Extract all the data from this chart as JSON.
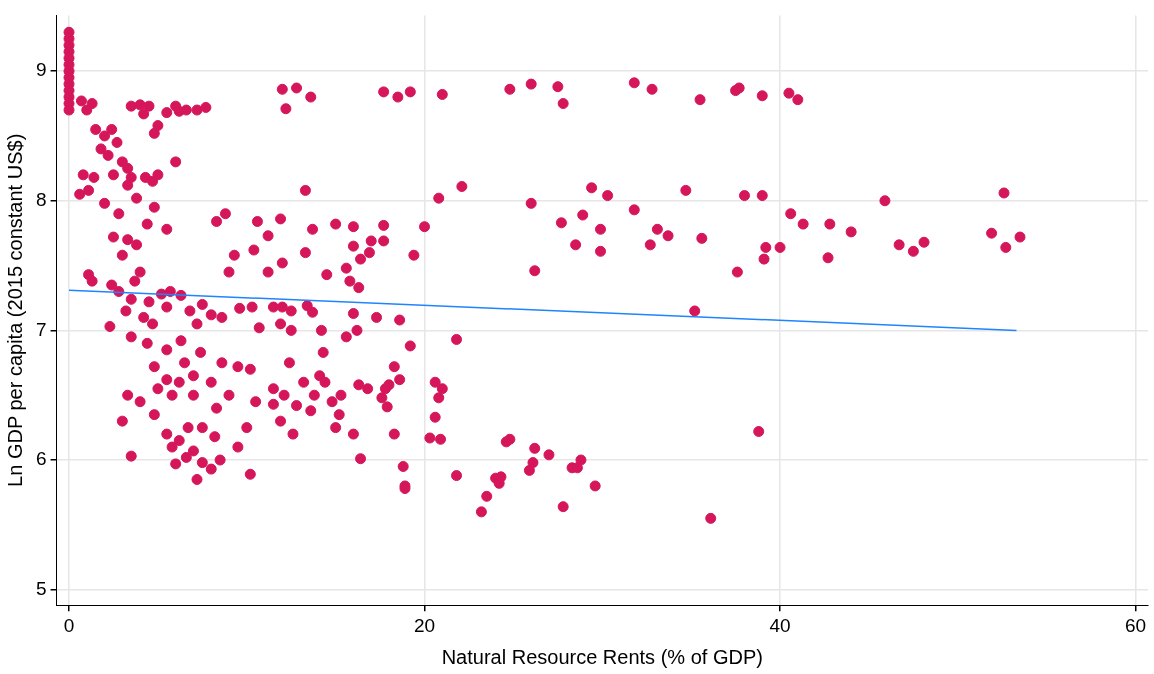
{
  "chart_data": {
    "type": "scatter",
    "xlabel": "Natural Resource Rents (% of GDP)",
    "ylabel": "Ln GDP per capita (2015 constant US$)",
    "xlim": [
      -0.7,
      60.7
    ],
    "ylim": [
      4.88,
      9.43
    ],
    "xticks": [
      0,
      20,
      40,
      60
    ],
    "yticks": [
      5,
      6,
      7,
      8,
      9
    ],
    "grid": true,
    "legend": false,
    "series": [
      {
        "marker": "circle",
        "color": "#d6165a",
        "x": [
          12,
          12.2,
          12.8,
          13.6,
          17.7,
          18.5,
          19.2,
          21,
          24.8,
          26,
          27.5,
          27.8,
          31.8,
          32.8,
          35.5,
          37.5,
          37.7,
          39,
          40.5,
          41,
          13.3,
          20.8,
          22.1,
          26,
          27.7,
          28.9,
          29.4,
          30.3,
          31.8,
          34.7,
          38,
          39,
          40.6,
          41.3,
          42.8,
          44,
          45.9,
          46.7,
          47.5,
          48.1,
          51.9,
          52.6,
          52.7,
          53.5,
          29.9,
          28.5,
          29.9,
          33.1,
          32.7,
          33.7,
          35.6,
          37.6,
          39.2,
          39.1,
          40,
          42.7,
          26.2,
          20,
          19.4,
          35.2,
          21.8,
          20.6,
          20.8,
          21,
          20.6,
          20.3,
          20.9,
          21.8,
          24.6,
          24.8,
          26.2,
          27,
          26.1,
          25.9,
          28.8,
          28.3,
          28.6,
          29.6,
          24,
          24.3,
          24.2,
          23.5,
          23.2,
          27.8,
          36.1,
          38.8,
          18.8,
          18.9,
          18.9,
          18.3,
          16,
          16.4,
          15,
          17.6,
          18,
          18.6,
          18.3,
          17.8,
          19.2,
          18.6,
          17.3,
          16,
          15.6,
          16.2,
          16.3,
          14.2,
          14.3,
          14.1,
          13.2,
          12.4,
          12.1,
          11.9,
          12.6,
          11.5,
          11.5,
          12.8,
          13.6,
          13.8,
          15.3,
          14.4,
          14.8,
          15.2,
          16.8,
          17.9,
          8.8,
          8.3,
          9.3,
          10.4,
          10.6,
          11.2,
          11.9,
          12,
          13.3,
          13.7,
          15,
          16,
          16,
          17,
          16.9,
          16.4,
          17.7,
          17.7,
          14.5,
          15.6,
          15.8,
          16.3,
          11.2,
          9,
          10.3,
          11.5,
          12,
          12.5,
          13.4,
          13.7,
          11.9,
          12.5,
          10.7,
          8.6,
          9.6,
          0,
          0,
          0,
          0,
          0,
          0,
          0,
          0,
          0,
          0,
          0,
          0,
          0,
          0.7,
          1.3,
          1,
          3.5,
          4,
          4.5,
          4.2,
          5.5,
          6,
          6.2,
          6.6,
          7.2,
          7.7,
          5,
          4.8,
          1.5,
          2,
          2.4,
          2.7,
          1.8,
          2.2,
          3,
          3.3,
          2.5,
          3.5,
          4.3,
          3.3,
          4.7,
          5,
          6,
          0.8,
          1.4,
          0.6,
          1.1,
          3.8,
          2,
          2.8,
          4.8,
          5.5,
          4.4,
          2.5,
          3.3,
          3.8,
          3,
          1.1,
          1.3,
          4,
          3.7,
          2.4,
          2.8,
          3.5,
          5.2,
          5.7,
          6.3,
          4.5,
          3.2,
          4.2,
          2.3,
          4.7,
          5.5,
          6.8,
          7.5,
          8,
          7.2,
          3.5,
          4.4,
          5.5,
          6.3,
          7.4,
          8.6,
          6.5,
          4.8,
          5.5,
          6.2,
          7,
          8,
          9.5,
          10.2,
          9,
          8.3,
          7,
          5.8,
          5,
          4,
          3.3,
          4.8,
          3,
          6.7,
          5.5,
          6.2,
          7.5,
          8.2,
          5.8,
          7,
          6.6,
          8.5,
          7.5,
          8,
          6,
          7.2,
          3.5,
          10.2,
          9.5,
          10,
          10.5
        ],
        "values": [
          8.86,
          8.71,
          8.87,
          8.8,
          8.84,
          8.8,
          8.84,
          8.82,
          8.86,
          8.9,
          8.88,
          8.75,
          8.91,
          8.86,
          8.78,
          8.85,
          8.87,
          8.81,
          8.83,
          8.78,
          8.08,
          8.02,
          8.11,
          7.98,
          7.83,
          7.89,
          8.1,
          8.04,
          7.93,
          8.08,
          8.04,
          8.04,
          7.9,
          7.82,
          7.82,
          7.76,
          8,
          7.66,
          7.61,
          7.68,
          7.75,
          8.06,
          7.64,
          7.72,
          7.78,
          7.66,
          7.61,
          7.78,
          7.66,
          7.73,
          7.71,
          7.45,
          7.64,
          7.55,
          7.64,
          7.56,
          7.46,
          7.8,
          7.58,
          7.15,
          6.93,
          6.6,
          6.48,
          6.55,
          6.33,
          6.17,
          6.16,
          5.88,
          6.14,
          6.16,
          6.09,
          6.04,
          5.98,
          5.92,
          6,
          5.94,
          5.94,
          5.8,
          5.86,
          5.87,
          5.82,
          5.72,
          5.6,
          5.64,
          5.55,
          6.22,
          5.95,
          5.8,
          5.78,
          6.2,
          6.2,
          6.01,
          6.25,
          6.48,
          6.58,
          6.62,
          6.72,
          6.55,
          6.88,
          7.08,
          7.1,
          7.13,
          6.95,
          7,
          6.58,
          7,
          6.83,
          6.65,
          6.6,
          6.75,
          6.5,
          6.3,
          6.2,
          6.55,
          6.43,
          6.42,
          6.38,
          6.5,
          6.5,
          6.6,
          6.45,
          6.35,
          6.55,
          6.41,
          7.9,
          7.84,
          7.58,
          7.62,
          7.84,
          7.73,
          7.86,
          7.52,
          7.6,
          7.78,
          7.82,
          7.8,
          7.65,
          7.69,
          7.6,
          7.55,
          7.81,
          7.69,
          7.43,
          7.48,
          7.38,
          7.33,
          7.45,
          7.45,
          7.18,
          7.18,
          7.18,
          7.15,
          7.19,
          7.14,
          7.05,
          7,
          7.02,
          7.1,
          7.17,
          9.3,
          9.25,
          9.2,
          9.15,
          9.1,
          9.05,
          9,
          8.95,
          8.9,
          8.85,
          8.8,
          8.75,
          8.7,
          8.77,
          8.75,
          8.7,
          8.73,
          8.74,
          8.73,
          8.67,
          8.68,
          8.73,
          8.69,
          8.7,
          8.7,
          8.72,
          8.58,
          8.52,
          8.55,
          8.5,
          8.55,
          8.45,
          8.4,
          8.35,
          8.3,
          8.25,
          8.2,
          8.18,
          8.18,
          8.12,
          8.15,
          8.2,
          8.3,
          8.2,
          8.18,
          8.05,
          8.08,
          8.02,
          7.98,
          7.9,
          7.95,
          7.78,
          7.82,
          7.72,
          7.7,
          7.66,
          7.58,
          7.43,
          7.38,
          7.45,
          7.38,
          7.35,
          7.3,
          7.24,
          7.28,
          7.3,
          7.27,
          7.22,
          7.15,
          7.1,
          7.03,
          7.05,
          7.18,
          7.15,
          7.2,
          7.12,
          7.05,
          6.95,
          6.9,
          6.85,
          6.92,
          6.83,
          6.75,
          6.75,
          6.72,
          6.62,
          6.6,
          6.65,
          6.6,
          6.72,
          6.7,
          6.5,
          6.4,
          6.5,
          6.5,
          6.55,
          6.45,
          6.5,
          6.35,
          6.3,
          6.25,
          6.2,
          6.15,
          6.25,
          6.18,
          6.1,
          6.07,
          6.02,
          6,
          5.98,
          5.93,
          5.97,
          5.85,
          6.03,
          5.89,
          6.1,
          6.25,
          6.45
        ]
      },
      {
        "type": "line",
        "marker": "none",
        "color": "#1f84ff",
        "x": [
          0,
          53.3
        ],
        "values": [
          7.31,
          7.0
        ]
      }
    ]
  }
}
